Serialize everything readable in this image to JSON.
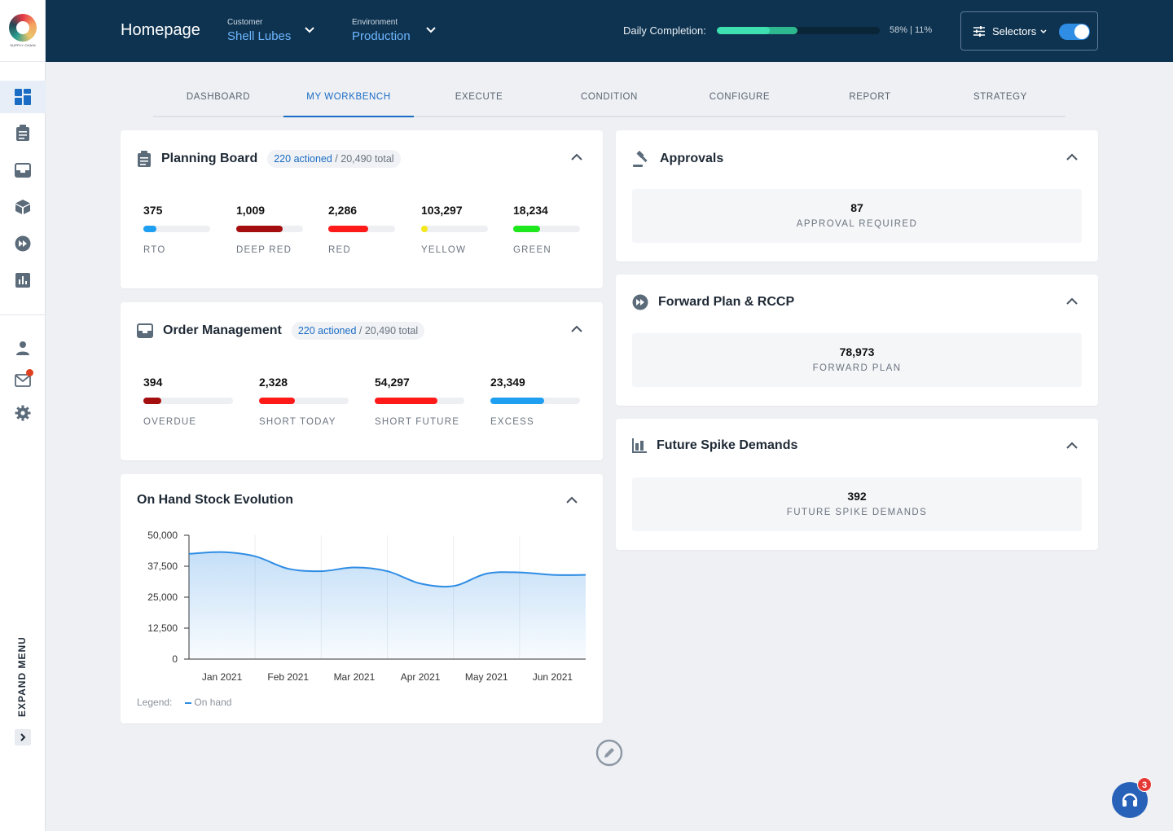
{
  "app": {
    "logo_text": "SUPPLY CHAIN"
  },
  "header": {
    "title": "Homepage",
    "customer": {
      "label": "Customer",
      "value": "Shell Lubes"
    },
    "environment": {
      "label": "Environment",
      "value": "Production"
    },
    "daily_completion": {
      "label": "Daily Completion:",
      "text": "58% | 11%",
      "primary_fraction": 0.58,
      "secondary_fraction": 0.11
    },
    "selectors": {
      "label": "Selectors",
      "toggle_on": true
    }
  },
  "sidebar": {
    "items": [
      {
        "icon": "dashboard-icon",
        "active": true
      },
      {
        "icon": "clipboard-icon",
        "active": false
      },
      {
        "icon": "inbox-icon",
        "active": false
      },
      {
        "icon": "cube-icon",
        "active": false
      },
      {
        "icon": "fast-forward-icon",
        "active": false
      },
      {
        "icon": "bar-chart-icon",
        "active": false
      }
    ],
    "bottom_items": [
      {
        "icon": "user-icon"
      },
      {
        "icon": "mail-icon"
      },
      {
        "icon": "settings-icon"
      }
    ],
    "expand_label": "EXPAND MENU"
  },
  "tabs": [
    {
      "label": "DASHBOARD",
      "active": false
    },
    {
      "label": "MY WORKBENCH",
      "active": true
    },
    {
      "label": "EXECUTE",
      "active": false
    },
    {
      "label": "CONDITION",
      "active": false
    },
    {
      "label": "CONFIGURE",
      "active": false
    },
    {
      "label": "REPORT",
      "active": false
    },
    {
      "label": "STRATEGY",
      "active": false
    }
  ],
  "planning_board": {
    "title": "Planning Board",
    "actioned": "220 actioned",
    "total": " / 20,490 total",
    "metrics": [
      {
        "value": "375",
        "label": "RTO",
        "fraction": 0.2,
        "color": "#1e9ff2"
      },
      {
        "value": "1,009",
        "label": "DEEP RED",
        "fraction": 0.7,
        "color": "#a50e0e"
      },
      {
        "value": "2,286",
        "label": "RED",
        "fraction": 0.6,
        "color": "#ff1a1a"
      },
      {
        "value": "103,297",
        "label": "YELLOW",
        "fraction": 0.1,
        "color": "#f4e81b"
      },
      {
        "value": "18,234",
        "label": "GREEN",
        "fraction": 0.4,
        "color": "#1ee71e"
      }
    ]
  },
  "order_management": {
    "title": "Order Management",
    "actioned": "220 actioned",
    "total": " / 20,490 total",
    "metrics": [
      {
        "value": "394",
        "label": "OVERDUE",
        "fraction": 0.2,
        "color": "#a50e0e"
      },
      {
        "value": "2,328",
        "label": "SHORT TODAY",
        "fraction": 0.4,
        "color": "#ff1a1a"
      },
      {
        "value": "54,297",
        "label": "SHORT FUTURE",
        "fraction": 0.7,
        "color": "#ff1a1a"
      },
      {
        "value": "23,349",
        "label": "EXCESS",
        "fraction": 0.6,
        "color": "#1e9ff2"
      }
    ]
  },
  "approvals": {
    "title": "Approvals",
    "value": "87",
    "label": "APPROVAL REQUIRED"
  },
  "forward_plan": {
    "title": "Forward Plan & RCCP",
    "value": "78,973",
    "label": "FORWARD PLAN"
  },
  "future_spike": {
    "title": "Future Spike Demands",
    "value": "392",
    "label": "FUTURE SPIKE DEMANDS"
  },
  "stock_chart": {
    "title": "On Hand Stock Evolution",
    "legend_label": "Legend:",
    "series_name": "On hand"
  },
  "chart_data": {
    "type": "area",
    "title": "On Hand Stock Evolution",
    "xlabel": "",
    "ylabel": "",
    "ylim": [
      0,
      50000
    ],
    "yticks": [
      "50,000",
      "37,500",
      "25,000",
      "12,500",
      "0"
    ],
    "ytick_values": [
      50000,
      37500,
      25000,
      12500,
      0
    ],
    "categories": [
      "Jan 2021",
      "Feb 2021",
      "Mar 2021",
      "Apr 2021",
      "May 2021",
      "Jun 2021"
    ],
    "x": [
      0,
      0.5,
      1,
      1.5,
      2,
      2.5,
      3,
      3.5,
      4,
      4.5,
      5,
      5.5
    ],
    "series": [
      {
        "name": "On hand",
        "values": [
          42500,
          43200,
          41500,
          36500,
          35500,
          37000,
          35500,
          30500,
          29500,
          34500,
          35000,
          34000
        ]
      }
    ],
    "grid": true,
    "legend": "bottom-left",
    "color": "#2f8de4"
  }
}
